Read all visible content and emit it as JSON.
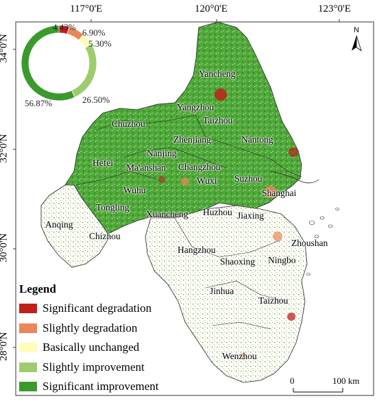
{
  "axes": {
    "top": [
      "117°0'E",
      "120°0'E",
      "123°0'E"
    ],
    "left": [
      "34°0'N",
      "32°0'N",
      "30°0'N",
      "28°0'N"
    ]
  },
  "north": "N",
  "scale": {
    "start": "0",
    "end": "100 km"
  },
  "legend": {
    "title": "Legend",
    "items": [
      {
        "label": "Significant degradation",
        "color": "#c0201c"
      },
      {
        "label": "Slightly degradation",
        "color": "#e9875a"
      },
      {
        "label": "Basically unchanged",
        "color": "#fffdb8"
      },
      {
        "label": "Slightly improvement",
        "color": "#9ccc6e"
      },
      {
        "label": "Significant improvement",
        "color": "#3a9a2c"
      }
    ]
  },
  "chart_data": {
    "type": "pie",
    "donut": true,
    "categories": [
      "Significant degradation",
      "Slightly degradation",
      "Basically unchanged",
      "Slightly improvement",
      "Significant improvement"
    ],
    "values": [
      4.43,
      6.9,
      5.3,
      26.5,
      56.87
    ],
    "labels": [
      "4.43%",
      "6.90%",
      "5.30%",
      "26.50%",
      "56.87%"
    ],
    "colors": [
      "#c0201c",
      "#e9875a",
      "#fffdb8",
      "#9ccc6e",
      "#3a9a2c"
    ]
  },
  "cities": [
    "Yancheng",
    "Yangzhou",
    "Taizhou",
    "Chuzhou",
    "Nantong",
    "Zhenjiang",
    "Nanjing",
    "Hefei",
    "Ma'anshan",
    "Changzhou",
    "Wuxi",
    "Suzhou",
    "Shanghai",
    "Wuhu",
    "Tongling",
    "Xuancheng",
    "Huzhou",
    "Jiaxing",
    "Anqing",
    "Chizhou",
    "Zhoushan",
    "Hangzhou",
    "Shaoxing",
    "Ningbo",
    "Jinhua",
    "Taizhou",
    "Wenzhou"
  ]
}
